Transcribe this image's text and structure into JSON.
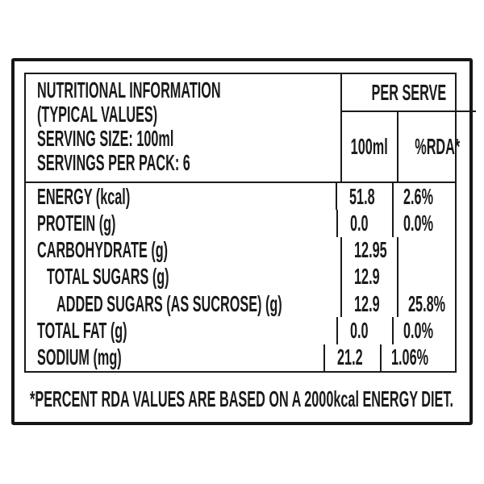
{
  "label": {
    "header": {
      "title_line1": "NUTRITIONAL INFORMATION",
      "title_line2": "(TYPICAL VALUES)",
      "serving_size": "SERVING SIZE: 100ml",
      "servings_per_pack": "SERVINGS PER PACK: 6",
      "per_serve": "PER SERVE",
      "col_amount": "100ml",
      "col_rda": "%RDA*"
    },
    "rows": [
      {
        "name": "ENERGY (kcal)",
        "value": "51.8",
        "rda": "2.6%",
        "indent": 0
      },
      {
        "name": "PROTEIN (g)",
        "value": "0.0",
        "rda": "0.0%",
        "indent": 0
      },
      {
        "name": "CARBOHYDRATE (g)",
        "value": "12.95",
        "rda": "",
        "indent": 0
      },
      {
        "name": "TOTAL SUGARS (g)",
        "value": "12.9",
        "rda": "",
        "indent": 1
      },
      {
        "name": "ADDED SUGARS (AS SUCROSE) (g)",
        "value": "12.9",
        "rda": "25.8%",
        "indent": 2
      },
      {
        "name": "TOTAL FAT (g)",
        "value": "0.0",
        "rda": "0.0%",
        "indent": 0
      },
      {
        "name": "SODIUM (mg)",
        "value": "21.2",
        "rda": "1.06%",
        "indent": 0
      }
    ],
    "footnote": "*PERCENT RDA VALUES ARE BASED ON A 2000kcal ENERGY DIET.",
    "colors": {
      "text": "#1a1a1a",
      "border": "#1a1a1a",
      "background": "#ffffff"
    }
  }
}
